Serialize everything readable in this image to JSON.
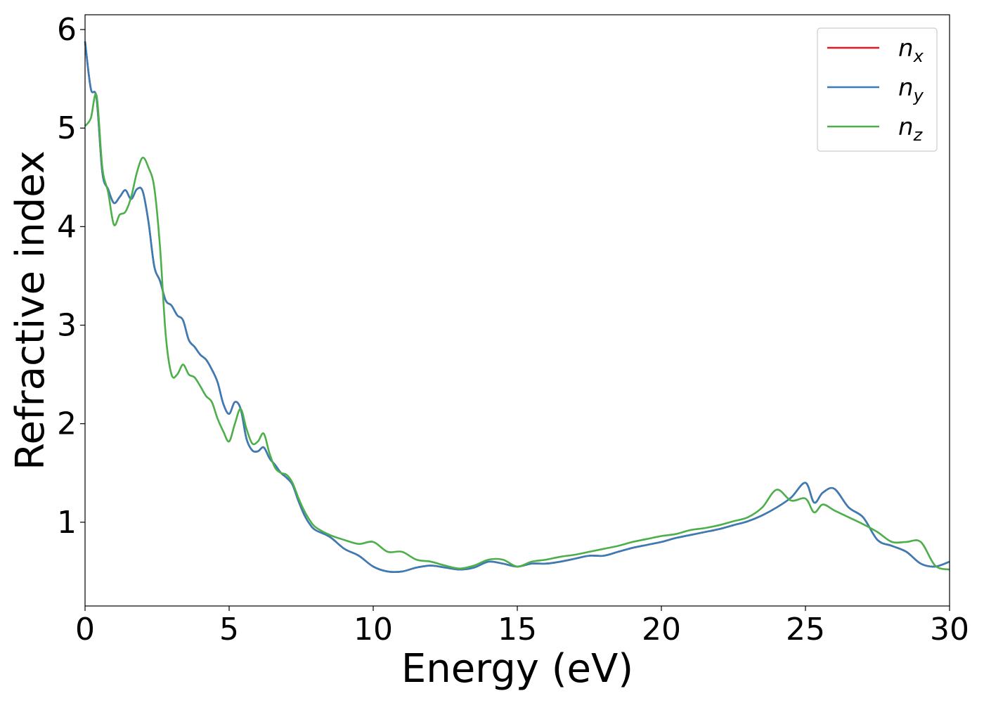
{
  "chart_data": {
    "type": "line",
    "xlabel": "Energy (eV)",
    "ylabel": "Refractive index",
    "xlim": [
      0,
      30
    ],
    "ylim": [
      0.15,
      6.15
    ],
    "xticks": [
      "0",
      "5",
      "10",
      "15",
      "20",
      "25",
      "30"
    ],
    "yticks": [
      "1",
      "2",
      "3",
      "4",
      "5",
      "6"
    ],
    "grid": false,
    "legend_position": "top-right",
    "x": [
      0,
      0.2,
      0.4,
      0.6,
      0.8,
      1.0,
      1.2,
      1.4,
      1.6,
      1.8,
      2.0,
      2.2,
      2.4,
      2.6,
      2.8,
      3.0,
      3.2,
      3.4,
      3.6,
      3.8,
      4.0,
      4.2,
      4.4,
      4.6,
      4.8,
      5.0,
      5.2,
      5.4,
      5.6,
      5.8,
      6.0,
      6.2,
      6.4,
      6.6,
      6.8,
      7.0,
      7.2,
      7.4,
      7.6,
      7.8,
      8.0,
      8.5,
      9.0,
      9.5,
      10.0,
      10.5,
      11.0,
      11.5,
      12.0,
      12.5,
      13.0,
      13.5,
      14.0,
      14.5,
      15.0,
      15.5,
      16.0,
      16.5,
      17.0,
      17.5,
      18.0,
      18.5,
      19.0,
      19.5,
      20.0,
      20.5,
      21.0,
      21.5,
      22.0,
      22.5,
      23.0,
      23.5,
      24.0,
      24.5,
      25.0,
      25.3,
      25.6,
      26.0,
      26.5,
      27.0,
      27.5,
      28.0,
      28.5,
      29.0,
      29.5,
      30.0
    ],
    "series": [
      {
        "name": "n_x",
        "label_main": "n",
        "label_sub": "x",
        "color": "#e41a1c",
        "values": [
          5.88,
          5.4,
          5.3,
          4.55,
          4.38,
          4.24,
          4.3,
          4.37,
          4.28,
          4.38,
          4.36,
          4.05,
          3.6,
          3.45,
          3.25,
          3.2,
          3.1,
          3.05,
          2.85,
          2.78,
          2.7,
          2.65,
          2.55,
          2.42,
          2.2,
          2.1,
          2.22,
          2.15,
          1.85,
          1.73,
          1.72,
          1.76,
          1.65,
          1.58,
          1.5,
          1.45,
          1.38,
          1.22,
          1.08,
          0.98,
          0.92,
          0.85,
          0.73,
          0.66,
          0.55,
          0.5,
          0.5,
          0.54,
          0.56,
          0.54,
          0.52,
          0.54,
          0.6,
          0.58,
          0.55,
          0.58,
          0.58,
          0.6,
          0.63,
          0.66,
          0.66,
          0.7,
          0.74,
          0.77,
          0.8,
          0.84,
          0.87,
          0.9,
          0.93,
          0.97,
          1.01,
          1.07,
          1.15,
          1.25,
          1.4,
          1.2,
          1.3,
          1.34,
          1.15,
          1.05,
          0.82,
          0.76,
          0.7,
          0.58,
          0.55,
          0.6
        ]
      },
      {
        "name": "n_y",
        "label_main": "n",
        "label_sub": "y",
        "color": "#377eb8",
        "values": [
          5.88,
          5.4,
          5.3,
          4.55,
          4.38,
          4.24,
          4.3,
          4.37,
          4.28,
          4.38,
          4.36,
          4.05,
          3.6,
          3.45,
          3.25,
          3.2,
          3.1,
          3.05,
          2.85,
          2.78,
          2.7,
          2.65,
          2.55,
          2.42,
          2.2,
          2.1,
          2.22,
          2.15,
          1.85,
          1.73,
          1.72,
          1.76,
          1.65,
          1.58,
          1.5,
          1.45,
          1.38,
          1.22,
          1.08,
          0.98,
          0.92,
          0.85,
          0.73,
          0.66,
          0.55,
          0.5,
          0.5,
          0.54,
          0.56,
          0.54,
          0.52,
          0.54,
          0.6,
          0.58,
          0.55,
          0.58,
          0.58,
          0.6,
          0.63,
          0.66,
          0.66,
          0.7,
          0.74,
          0.77,
          0.8,
          0.84,
          0.87,
          0.9,
          0.93,
          0.97,
          1.01,
          1.07,
          1.15,
          1.25,
          1.4,
          1.2,
          1.3,
          1.34,
          1.15,
          1.05,
          0.82,
          0.76,
          0.7,
          0.58,
          0.55,
          0.6
        ]
      },
      {
        "name": "n_z",
        "label_main": "n",
        "label_sub": "z",
        "color": "#4daf4a",
        "values": [
          5.02,
          5.1,
          5.33,
          4.6,
          4.35,
          4.02,
          4.12,
          4.15,
          4.3,
          4.55,
          4.7,
          4.6,
          4.4,
          3.8,
          2.9,
          2.5,
          2.5,
          2.6,
          2.5,
          2.47,
          2.38,
          2.28,
          2.22,
          2.05,
          1.92,
          1.82,
          2.0,
          2.15,
          1.95,
          1.8,
          1.82,
          1.9,
          1.7,
          1.55,
          1.5,
          1.48,
          1.4,
          1.25,
          1.12,
          1.02,
          0.95,
          0.87,
          0.82,
          0.78,
          0.8,
          0.7,
          0.7,
          0.62,
          0.6,
          0.56,
          0.53,
          0.56,
          0.62,
          0.62,
          0.55,
          0.6,
          0.62,
          0.65,
          0.67,
          0.7,
          0.73,
          0.76,
          0.8,
          0.83,
          0.86,
          0.88,
          0.92,
          0.94,
          0.97,
          1.01,
          1.05,
          1.15,
          1.33,
          1.22,
          1.24,
          1.1,
          1.18,
          1.12,
          1.05,
          0.98,
          0.9,
          0.8,
          0.8,
          0.8,
          0.56,
          0.52
        ]
      }
    ]
  }
}
